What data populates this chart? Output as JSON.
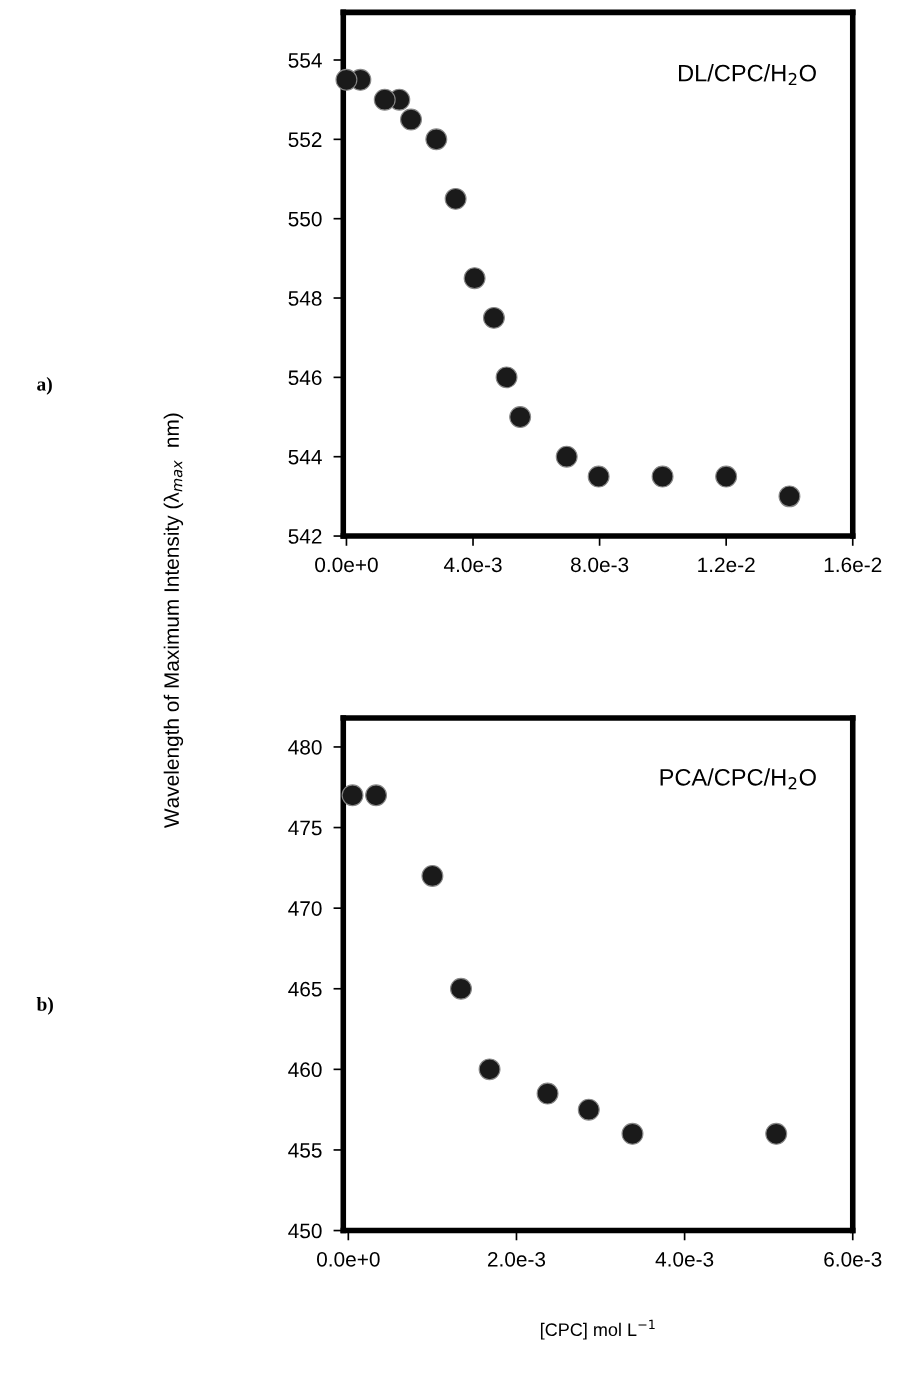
{
  "chart_data": [
    {
      "type": "scatter",
      "ylabel": "Wavelength of Maximum Intensity (λ$_{max}$  nm)",
      "annotations": [
        "a)",
        "DL/CPC/H$_{2}$O"
      ],
      "x": [
        0,
        0.00044,
        0.00121,
        0.00167,
        0.00204,
        0.00284,
        0.00345,
        0.00405,
        0.00466,
        0.00506,
        0.00549,
        0.00696,
        0.00797,
        0.00999,
        0.012,
        0.014
      ],
      "values": [
        553.5,
        553.5,
        553.0,
        553.0,
        552.5,
        552.0,
        550.5,
        548.5,
        547.5,
        546.0,
        545.0,
        544.0,
        543.5,
        543.5,
        543.5,
        543.0
      ],
      "color": "#1a1a1a",
      "marker": "circle",
      "xlim": [
        -0.0001,
        0.016
      ],
      "ylim": [
        542,
        555.2
      ],
      "xticks": [
        {
          "value": 0,
          "label": "0.0e+0"
        },
        {
          "value": 0.004,
          "label": "4.0e-3"
        },
        {
          "value": 0.008,
          "label": "8.0e-3"
        },
        {
          "value": 0.012,
          "label": "1.2e-2"
        },
        {
          "value": 0.016,
          "label": "1.6e-2"
        }
      ],
      "yticks": [
        542,
        544,
        546,
        548,
        550,
        552,
        554
      ],
      "grid": false
    },
    {
      "type": "scatter",
      "xlabel": "[CPC] mol L$^{−1}$",
      "annotations": [
        "b)",
        "PCA/CPC/H$_{2}$O"
      ],
      "x": [
        5e-05,
        0.00033,
        0.001,
        0.00134,
        0.00168,
        0.00237,
        0.00286,
        0.00338,
        0.00509
      ],
      "values": [
        477,
        477,
        472,
        465,
        460,
        458.5,
        457.5,
        456,
        456
      ],
      "color": "#1a1a1a",
      "marker": "circle",
      "xlim": [
        -6e-05,
        0.006
      ],
      "ylim": [
        450,
        481.8
      ],
      "xticks": [
        {
          "value": 0,
          "label": "0.0e+0"
        },
        {
          "value": 0.002,
          "label": "2.0e-3"
        },
        {
          "value": 0.004,
          "label": "4.0e-3"
        },
        {
          "value": 0.006,
          "label": "6.0e-3"
        }
      ],
      "yticks": [
        450,
        455,
        460,
        465,
        470,
        475,
        480
      ],
      "grid": false
    }
  ]
}
